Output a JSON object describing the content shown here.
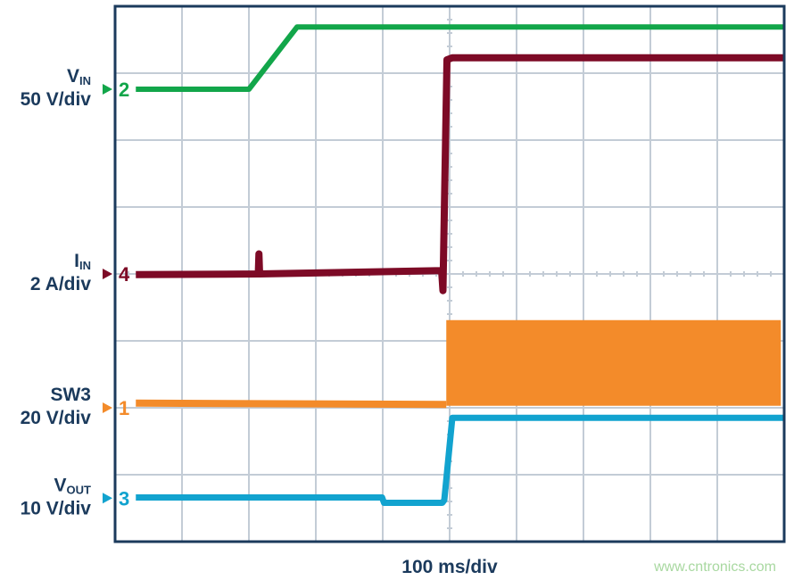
{
  "chart_data": {
    "type": "line",
    "title": "",
    "xlabel": "100 ms/div",
    "x_unit": "ms",
    "xlim": [
      0,
      1000
    ],
    "y_unit": "div",
    "ylim": [
      0,
      8
    ],
    "grid": true,
    "grid_divisions": {
      "x": 10,
      "y": 8
    },
    "watermark": "www.cntronics.com",
    "channels": [
      {
        "number": "2",
        "name": "V",
        "subscript": "IN",
        "scale": "50 V/div",
        "color": "#12a64a",
        "marker_level": 6.76,
        "x": [
          31,
          200,
          272,
          1000
        ],
        "y": [
          6.76,
          6.76,
          7.69,
          7.69
        ],
        "width": 6
      },
      {
        "number": "4",
        "name": "I",
        "subscript": "IN",
        "scale": "2 A/div",
        "color": "#7d0a26",
        "marker_level": 4.0,
        "x": [
          31,
          214,
          215,
          216,
          488,
          490,
          496,
          504,
          1000
        ],
        "y": [
          3.99,
          4.0,
          4.3,
          4.0,
          4.05,
          3.75,
          7.2,
          7.23,
          7.23
        ],
        "width": 8
      },
      {
        "number": "1",
        "name": "SW3",
        "subscript": "",
        "scale": "20 V/div",
        "color": "#f38b2a",
        "marker_level": 2.0,
        "x": [
          31,
          495
        ],
        "y": [
          2.07,
          2.05
        ],
        "width": 8,
        "band": {
          "x": [
            495,
            995
          ],
          "y_low": 2.03,
          "y_high": 3.31
        }
      },
      {
        "number": "3",
        "name": "V",
        "subscript": "OUT",
        "scale": "10 V/div",
        "color": "#12a3cf",
        "marker_level": 0.65,
        "x": [
          31,
          399,
          402,
          489,
          492,
          504,
          1000
        ],
        "y": [
          0.66,
          0.66,
          0.58,
          0.58,
          0.62,
          1.85,
          1.85
        ],
        "width": 7
      }
    ]
  }
}
